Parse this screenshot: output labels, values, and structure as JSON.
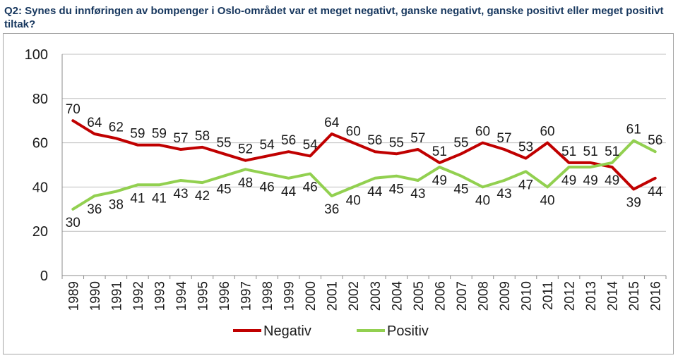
{
  "title": "Q2: Synes du innføringen av bompenger i Oslo-området var et meget negativt, ganske negativt, ganske positivt eller meget positivt tiltak?",
  "chart_data": {
    "type": "line",
    "title": "Q2: Synes du innføringen av bompenger i Oslo-området var et meget negativt, ganske negativt, ganske positivt eller meget positivt tiltak?",
    "xlabel": "",
    "ylabel": "",
    "ylim": [
      0,
      100
    ],
    "yticks": [
      0,
      20,
      40,
      60,
      80,
      100
    ],
    "grid": true,
    "legend": "bottom",
    "categories": [
      "1989",
      "1990",
      "1991",
      "1992",
      "1993",
      "1994",
      "1995",
      "1996",
      "1997",
      "1998",
      "1999",
      "2000",
      "2001",
      "2002",
      "2003",
      "2004",
      "2005",
      "2006",
      "2007",
      "2008",
      "2009",
      "2010",
      "2011",
      "2012",
      "2013",
      "2014",
      "2015",
      "2016"
    ],
    "series": [
      {
        "name": "Negativ",
        "color": "#c00000",
        "values": [
          70,
          64,
          62,
          59,
          59,
          57,
          58,
          55,
          52,
          54,
          56,
          54,
          64,
          60,
          56,
          55,
          57,
          51,
          55,
          60,
          57,
          53,
          60,
          51,
          51,
          49,
          39,
          44
        ]
      },
      {
        "name": "Positiv",
        "color": "#92d050",
        "values": [
          30,
          36,
          38,
          41,
          41,
          43,
          42,
          45,
          48,
          46,
          44,
          46,
          36,
          40,
          44,
          45,
          43,
          49,
          45,
          40,
          43,
          47,
          40,
          49,
          49,
          51,
          61,
          56
        ]
      }
    ]
  }
}
